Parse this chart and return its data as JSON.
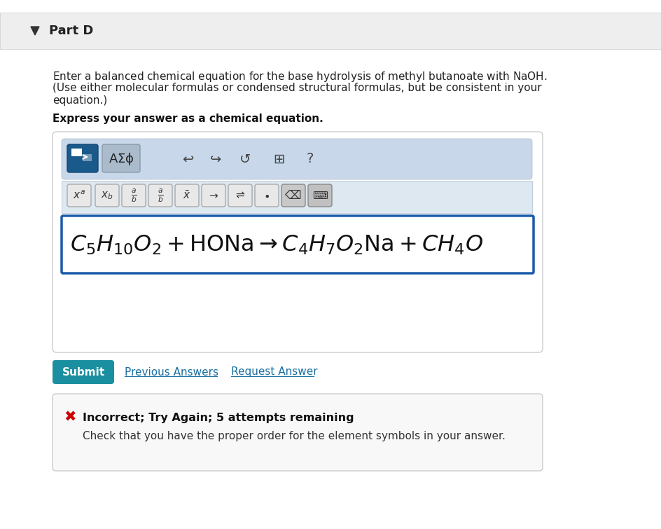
{
  "white": "#ffffff",
  "part_d_text": "Part D",
  "question_text_line1": "Enter a balanced chemical equation for the base hydrolysis of methyl butanoate with NaOH.",
  "question_text_line2": "(Use either molecular formulas or condensed structural formulas, but be consistent in your",
  "question_text_line3": "equation.)",
  "express_text": "Express your answer as a chemical equation.",
  "submit_color": "#1a8fa0",
  "submit_text": "Submit",
  "prev_answers_text": "Previous Answers",
  "req_answer_text": "Request Answer",
  "link_color": "#1a6fa0",
  "incorrect_text": "Incorrect; Try Again; 5 attempts remaining",
  "check_text": "Check that you have the proper order for the element symbols in your answer.",
  "error_red": "#cc0000",
  "toolbar_bg": "#c8d8ea",
  "toolbar_btn_bg": "#1a5a8a",
  "button_bg": "#e8e8e8",
  "button_border": "#aaaaaa",
  "input_border": "#1a5aaa",
  "input_bg": "#ffffff",
  "header_bg": "#eeeeee",
  "header_border": "#cccccc",
  "outer_box_bg": "#ffffff",
  "outer_box_border": "#cccccc",
  "incorrect_box_bg": "#f8f8f8",
  "incorrect_box_border": "#cccccc"
}
